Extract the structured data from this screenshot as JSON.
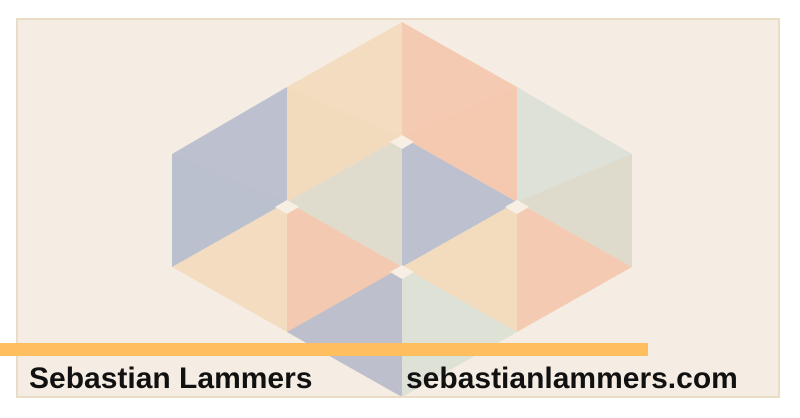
{
  "author": {
    "name": "Sebastian Lammers",
    "website": "sebastianlammers.com"
  },
  "colors": {
    "background": "#f5ede3",
    "border": "#ebdcc7",
    "stripe": "#ffbf5e",
    "text": "#111111",
    "palette": [
      "#b9bfce",
      "#f2dbbd",
      "#f3c8af",
      "#dce0d7",
      "#e0d8c8"
    ]
  },
  "artwork": {
    "description_icon": "isometric-cube-pattern"
  }
}
